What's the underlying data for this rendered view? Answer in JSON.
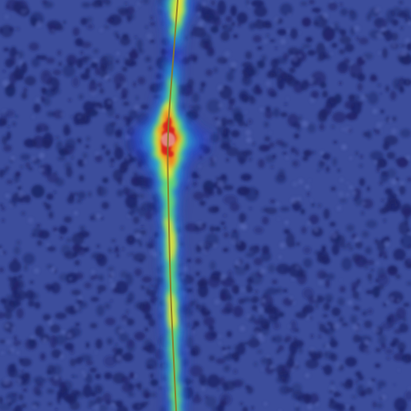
{
  "image": {
    "subject": "heatmap-overlay-on-textured-surface",
    "colormap": {
      "background": "#3c4d9c",
      "speckle_dark": "#1c2266",
      "low": "#2a3fc8",
      "mid_low": "#27b6d8",
      "mid": "#6fe06a",
      "mid_high": "#f2e23a",
      "high": "#f07a1e",
      "peak": "#d6231d",
      "crack_line": "#8a7a2a"
    }
  }
}
